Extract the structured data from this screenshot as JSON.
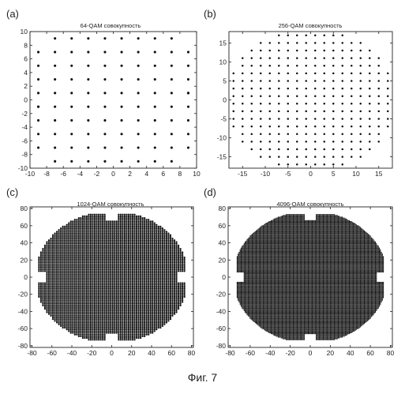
{
  "figure": {
    "caption": "Фиг. 7"
  },
  "chart_data": [
    {
      "type": "scatter",
      "panel_label": "(a)",
      "title": "64-QAM совокупность",
      "marker_radius_units": "fixed",
      "constellation": {
        "x_levels": [
          -9,
          -7,
          -5,
          -3,
          -1,
          1,
          3,
          5,
          7,
          9
        ],
        "radius": 11.5
      },
      "xlim": [
        -10,
        10
      ],
      "ylim": [
        -10,
        10
      ],
      "xticks": [
        -10,
        -8,
        -6,
        -4,
        -2,
        0,
        2,
        4,
        6,
        8,
        10
      ],
      "yticks": [
        10,
        8,
        6,
        4,
        2,
        0,
        -2,
        -4,
        -6,
        -8,
        -10
      ],
      "xtick_labels": [
        "-10",
        "-8",
        "-6",
        "-4",
        "-2",
        "0",
        "2",
        "4",
        "6",
        "8",
        "10"
      ],
      "ytick_labels": [
        "10",
        "8",
        "6",
        "4",
        "2",
        "0",
        "-2",
        "-4",
        "-6",
        "-8",
        "-10"
      ],
      "extra_points": [
        [
          -9,
          -1
        ],
        [
          9,
          1
        ]
      ],
      "grid": false
    },
    {
      "type": "scatter",
      "panel_label": "(b)",
      "title": "256-QAM совокупность",
      "constellation": {
        "x_levels": [
          -17,
          -15,
          -13,
          -11,
          -9,
          -7,
          -5,
          -3,
          -1,
          1,
          3,
          5,
          7,
          9,
          11,
          13,
          15,
          17
        ],
        "radius": 19.2
      },
      "xlim": [
        -18,
        18
      ],
      "ylim": [
        -18,
        18
      ],
      "xticks": [
        -15,
        -10,
        -5,
        0,
        5,
        10,
        15
      ],
      "yticks": [
        15,
        10,
        5,
        0,
        -5,
        -10,
        -15
      ],
      "xtick_labels": [
        "-15",
        "-10",
        "-5",
        "0",
        "5",
        "10",
        "15"
      ],
      "ytick_labels": [
        "15",
        "10",
        "5",
        "0",
        "-5",
        "-10",
        "-15"
      ],
      "extra_points": [],
      "grid": false
    },
    {
      "type": "scatter",
      "panel_label": "(c)",
      "title": "1024-QAM совокупность",
      "constellation": {
        "step": 2,
        "max_level": 73,
        "radius": 77
      },
      "xlim": [
        -82,
        82
      ],
      "ylim": [
        -82,
        82
      ],
      "xticks": [
        -80,
        -60,
        -40,
        -20,
        0,
        20,
        40,
        60,
        80
      ],
      "yticks": [
        80,
        60,
        40,
        20,
        0,
        -20,
        -40,
        -60,
        -80
      ],
      "xtick_labels": [
        "-80",
        "-60",
        "-40",
        "-20",
        "0",
        "20",
        "40",
        "60",
        "80"
      ],
      "ytick_labels": [
        "80",
        "60",
        "40",
        "20",
        "0",
        "-20",
        "-40",
        "-60",
        "-80"
      ],
      "extra_points": [],
      "grid": false
    },
    {
      "type": "scatter",
      "panel_label": "(d)",
      "title": "4096-QAM совокупность",
      "constellation": {
        "step": 1,
        "max_level": 73,
        "radius": 77
      },
      "xlim": [
        -82,
        82
      ],
      "ylim": [
        -82,
        82
      ],
      "xticks": [
        -80,
        -60,
        -40,
        -20,
        0,
        20,
        40,
        60,
        80
      ],
      "yticks": [
        80,
        60,
        40,
        20,
        0,
        -20,
        -40,
        -60,
        -80
      ],
      "xtick_labels": [
        "-80",
        "-60",
        "-40",
        "-20",
        "0",
        "20",
        "40",
        "60",
        "80"
      ],
      "ytick_labels": [
        "80",
        "60",
        "40",
        "20",
        "0",
        "-20",
        "-40",
        "-60",
        "-80"
      ],
      "extra_points": [],
      "grid": false
    }
  ]
}
